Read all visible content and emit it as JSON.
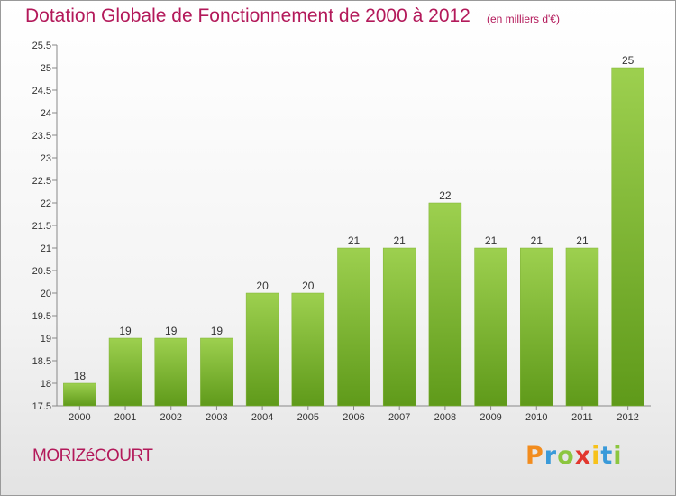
{
  "header": {
    "title": "Dotation Globale de Fonctionnement de 2000 à 2012",
    "unit": "(en milliers d'€)"
  },
  "footer": {
    "commune": "MORIZéCOURT",
    "logo_text": "Proxiti",
    "logo_letters": [
      {
        "ch": "P",
        "color": "#f28c1e"
      },
      {
        "ch": "r",
        "color": "#3a9ad9"
      },
      {
        "ch": "o",
        "color": "#8cc63f"
      },
      {
        "ch": "x",
        "color": "#e2372e"
      },
      {
        "ch": "i",
        "color": "#f7c21a"
      },
      {
        "ch": "t",
        "color": "#3a9ad9"
      },
      {
        "ch": "i",
        "color": "#8cc63f"
      }
    ]
  },
  "chart_data": {
    "type": "bar",
    "categories": [
      "2000",
      "2001",
      "2002",
      "2003",
      "2004",
      "2005",
      "2006",
      "2007",
      "2008",
      "2009",
      "2010",
      "2011",
      "2012"
    ],
    "values": [
      18,
      19,
      19,
      19,
      20,
      20,
      21,
      21,
      22,
      21,
      21,
      21,
      25
    ],
    "ylim": [
      17.5,
      25.5
    ],
    "yticks": [
      "17.5",
      "18",
      "18.5",
      "19",
      "19.5",
      "20",
      "20.5",
      "21",
      "21.5",
      "22",
      "22.5",
      "23",
      "23.5",
      "24",
      "24.5",
      "25",
      "25.5"
    ],
    "grid": false,
    "bar_color_light": "#9dd04f",
    "bar_color_dark": "#5f9a1a"
  }
}
